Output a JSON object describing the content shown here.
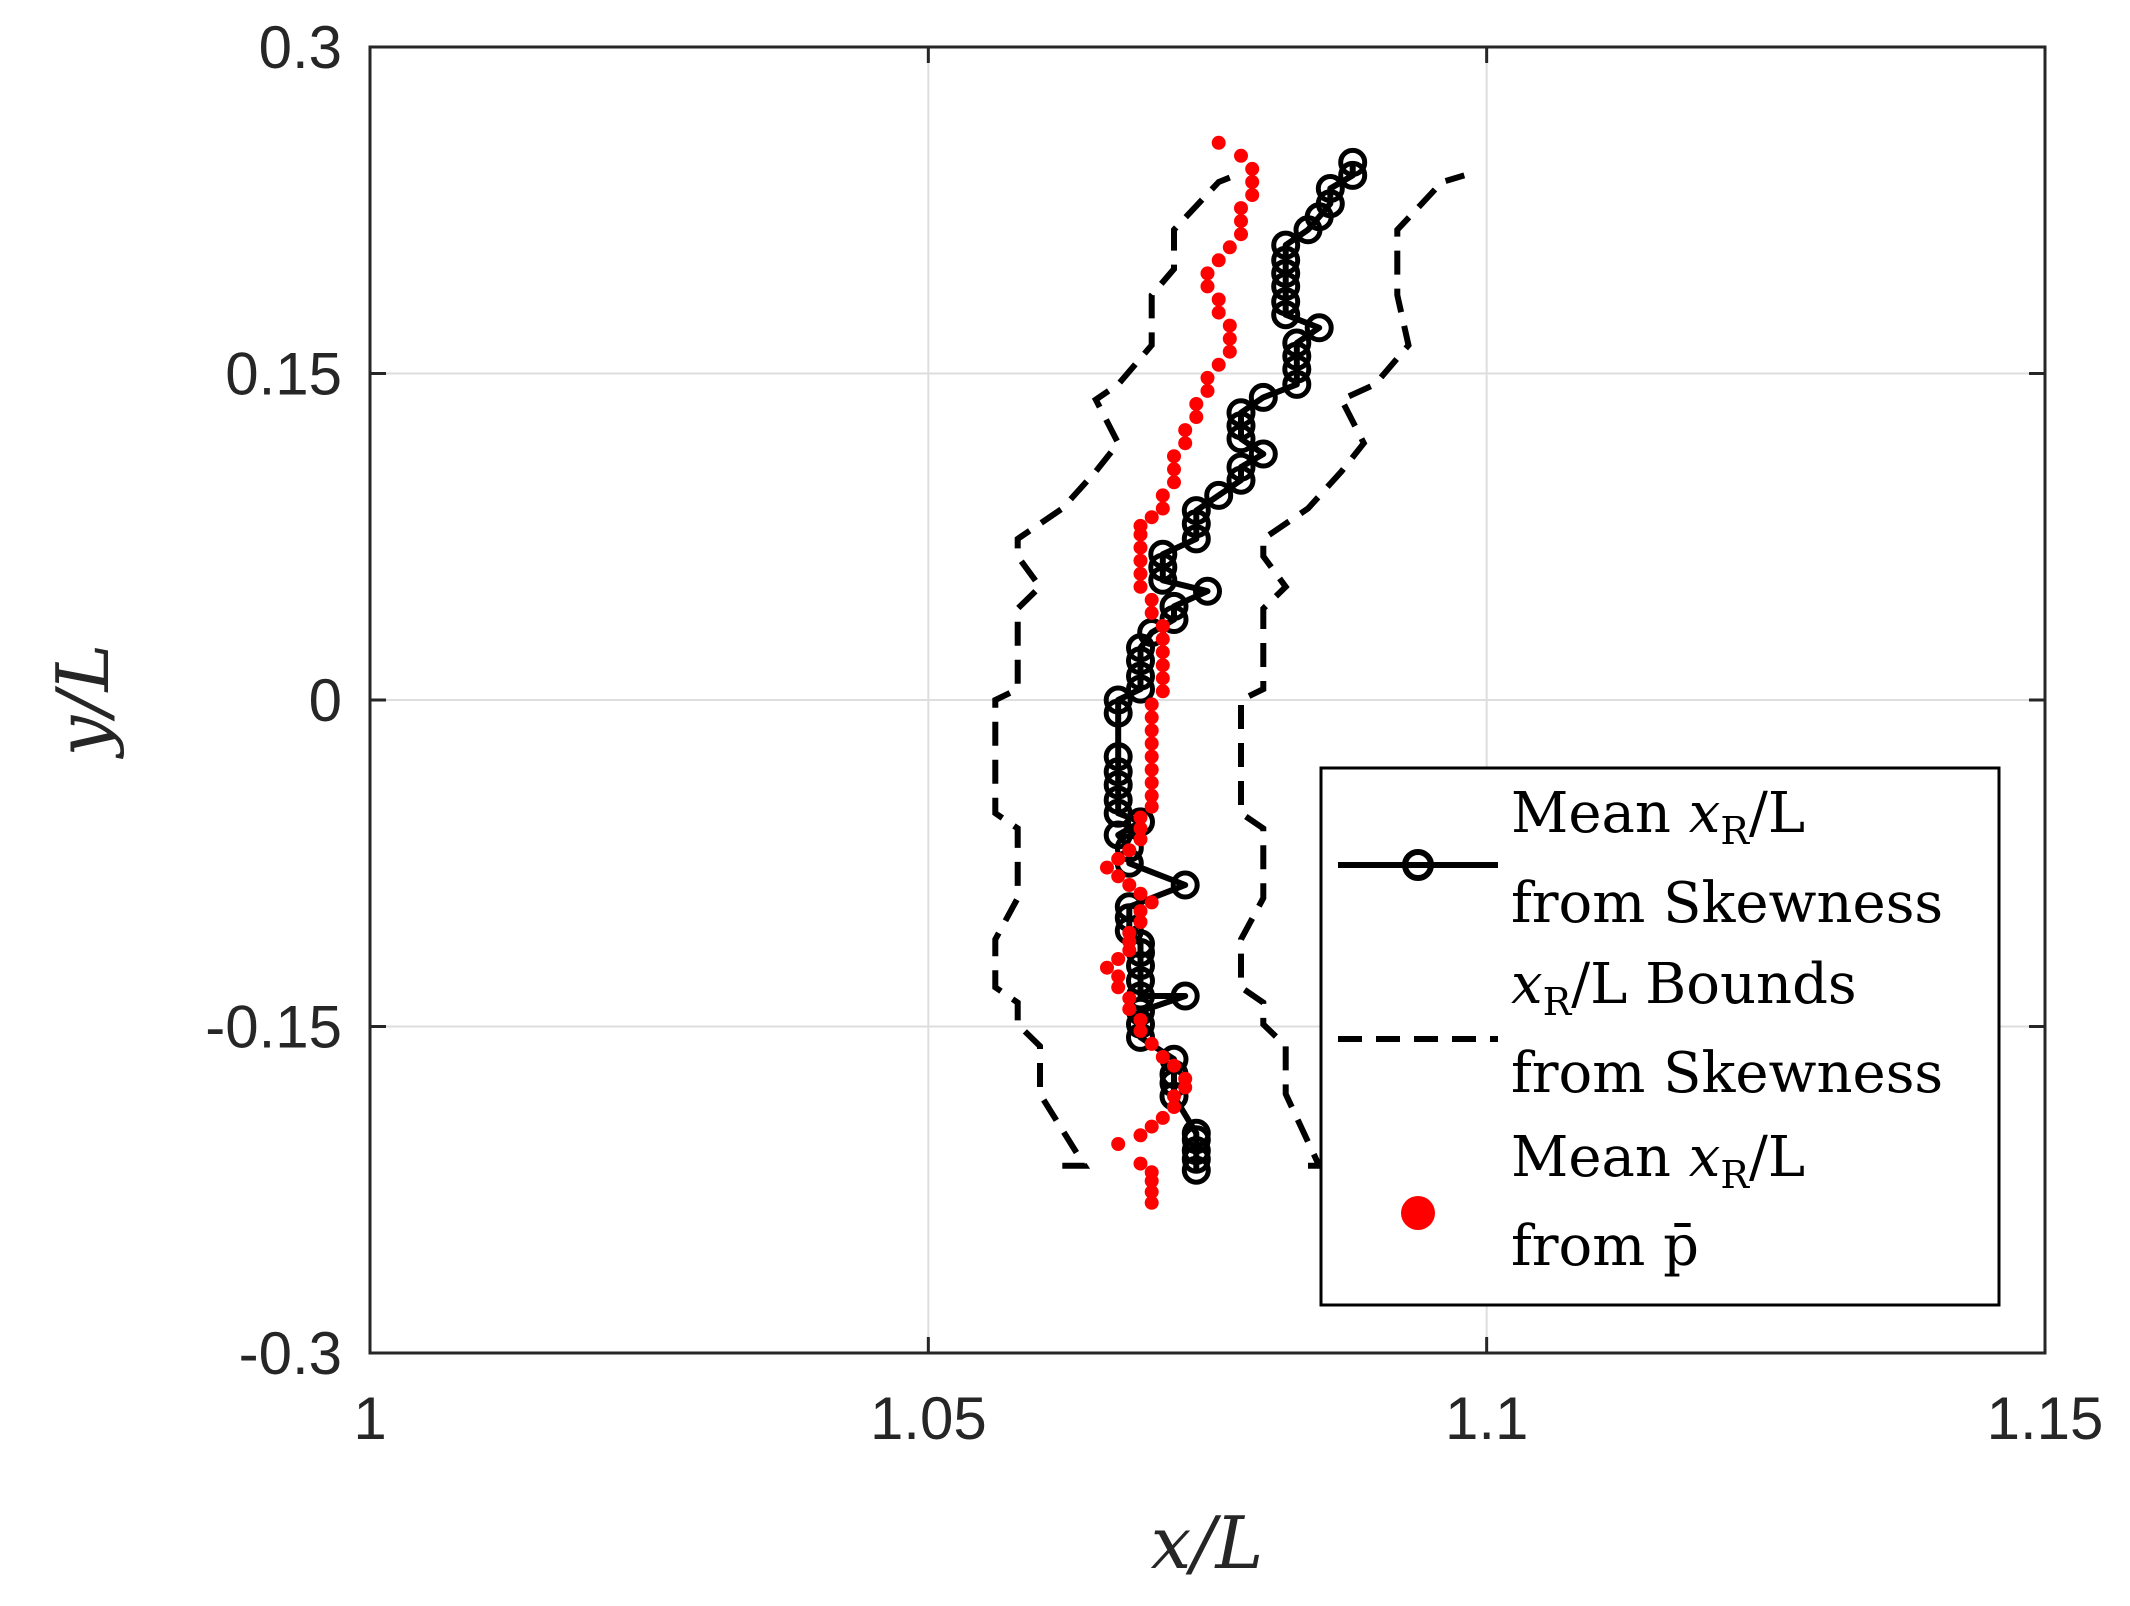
{
  "chart_data": {
    "type": "scatter",
    "title": "",
    "xlabel": "x/L",
    "ylabel": "y/L",
    "xlim": [
      1,
      1.15
    ],
    "ylim": [
      -0.3,
      0.3
    ],
    "xticks": [
      "1",
      "1.05",
      "1.1",
      "1.15"
    ],
    "xtick_values": [
      1,
      1.05,
      1.1,
      1.15
    ],
    "yticks": [
      "0.3",
      "0.15",
      "0",
      "-0.15",
      "-0.3"
    ],
    "ytick_values": [
      0.3,
      0.15,
      0,
      -0.15,
      -0.3
    ],
    "grid": true,
    "legend_position": "bottom-right",
    "legend": [
      {
        "line1_pre": "Mean ",
        "line1_math": "x",
        "line1_sub": "R",
        "line1_post": "/L",
        "line2": "from Skewness"
      },
      {
        "line1_pre": "",
        "line1_math": "x",
        "line1_sub": "R",
        "line1_post": "/L Bounds",
        "line2": "from Skewness"
      },
      {
        "line1_pre": "Mean ",
        "line1_math": "x",
        "line1_sub": "R",
        "line1_post": "/L",
        "line2": "from p̄"
      }
    ],
    "series": [
      {
        "name": "Mean xR/L from Skewness",
        "style": "black solid line with open circles",
        "color": "#000000",
        "points": [
          [
            1.074,
            -0.216
          ],
          [
            1.074,
            -0.211
          ],
          [
            1.074,
            -0.207
          ],
          [
            1.074,
            -0.202
          ],
          [
            1.074,
            -0.199
          ],
          [
            1.072,
            -0.182
          ],
          [
            1.072,
            -0.176
          ],
          [
            1.072,
            -0.172
          ],
          [
            1.072,
            -0.165
          ],
          [
            1.069,
            -0.155
          ],
          [
            1.069,
            -0.149
          ],
          [
            1.069,
            -0.143
          ],
          [
            1.073,
            -0.136
          ],
          [
            1.069,
            -0.136
          ],
          [
            1.069,
            -0.129
          ],
          [
            1.069,
            -0.122
          ],
          [
            1.069,
            -0.116
          ],
          [
            1.069,
            -0.112
          ],
          [
            1.068,
            -0.106
          ],
          [
            1.068,
            -0.1
          ],
          [
            1.068,
            -0.095
          ],
          [
            1.073,
            -0.085
          ],
          [
            1.068,
            -0.075
          ],
          [
            1.068,
            -0.068
          ],
          [
            1.067,
            -0.062
          ],
          [
            1.069,
            -0.056
          ],
          [
            1.067,
            -0.052
          ],
          [
            1.067,
            -0.046
          ],
          [
            1.067,
            -0.039
          ],
          [
            1.067,
            -0.033
          ],
          [
            1.067,
            -0.026
          ],
          [
            1.067,
            -0.006
          ],
          [
            1.067,
            0.0
          ],
          [
            1.069,
            0.005
          ],
          [
            1.069,
            0.011
          ],
          [
            1.069,
            0.018
          ],
          [
            1.069,
            0.024
          ],
          [
            1.07,
            0.031
          ],
          [
            1.072,
            0.037
          ],
          [
            1.072,
            0.043
          ],
          [
            1.075,
            0.05
          ],
          [
            1.071,
            0.055
          ],
          [
            1.071,
            0.061
          ],
          [
            1.071,
            0.067
          ],
          [
            1.074,
            0.074
          ],
          [
            1.074,
            0.081
          ],
          [
            1.074,
            0.087
          ],
          [
            1.076,
            0.094
          ],
          [
            1.078,
            0.101
          ],
          [
            1.078,
            0.107
          ],
          [
            1.08,
            0.113
          ],
          [
            1.078,
            0.12
          ],
          [
            1.078,
            0.126
          ],
          [
            1.078,
            0.132
          ],
          [
            1.08,
            0.139
          ],
          [
            1.083,
            0.145
          ],
          [
            1.083,
            0.152
          ],
          [
            1.083,
            0.158
          ],
          [
            1.083,
            0.164
          ],
          [
            1.085,
            0.171
          ],
          [
            1.082,
            0.177
          ],
          [
            1.082,
            0.183
          ],
          [
            1.082,
            0.19
          ],
          [
            1.082,
            0.196
          ],
          [
            1.082,
            0.202
          ],
          [
            1.082,
            0.209
          ],
          [
            1.084,
            0.216
          ],
          [
            1.085,
            0.222
          ],
          [
            1.086,
            0.228
          ],
          [
            1.086,
            0.235
          ],
          [
            1.088,
            0.241
          ],
          [
            1.088,
            0.247
          ]
        ]
      },
      {
        "name": "xR/L Bounds from Skewness (lower)",
        "style": "black dashed line",
        "color": "#000000",
        "points": [
          [
            1.062,
            -0.214
          ],
          [
            1.064,
            -0.214
          ],
          [
            1.06,
            -0.181
          ],
          [
            1.06,
            -0.159
          ],
          [
            1.058,
            -0.149
          ],
          [
            1.058,
            -0.139
          ],
          [
            1.056,
            -0.132
          ],
          [
            1.056,
            -0.11
          ],
          [
            1.058,
            -0.091
          ],
          [
            1.058,
            -0.059
          ],
          [
            1.056,
            -0.052
          ],
          [
            1.056,
            0.0
          ],
          [
            1.058,
            0.005
          ],
          [
            1.058,
            0.042
          ],
          [
            1.06,
            0.052
          ],
          [
            1.058,
            0.066
          ],
          [
            1.058,
            0.074
          ],
          [
            1.062,
            0.088
          ],
          [
            1.065,
            0.105
          ],
          [
            1.067,
            0.118
          ],
          [
            1.065,
            0.138
          ],
          [
            1.067,
            0.145
          ],
          [
            1.07,
            0.163
          ],
          [
            1.07,
            0.186
          ],
          [
            1.072,
            0.198
          ],
          [
            1.072,
            0.216
          ],
          [
            1.074,
            0.227
          ],
          [
            1.076,
            0.238
          ],
          [
            1.077,
            0.24
          ]
        ]
      },
      {
        "name": "xR/L Bounds from Skewness (upper)",
        "style": "black dashed line",
        "color": "#000000",
        "points": [
          [
            1.084,
            -0.214
          ],
          [
            1.085,
            -0.214
          ],
          [
            1.082,
            -0.181
          ],
          [
            1.082,
            -0.159
          ],
          [
            1.08,
            -0.149
          ],
          [
            1.08,
            -0.139
          ],
          [
            1.078,
            -0.132
          ],
          [
            1.078,
            -0.11
          ],
          [
            1.08,
            -0.091
          ],
          [
            1.08,
            -0.059
          ],
          [
            1.078,
            -0.052
          ],
          [
            1.078,
            0.0
          ],
          [
            1.08,
            0.005
          ],
          [
            1.08,
            0.042
          ],
          [
            1.082,
            0.052
          ],
          [
            1.08,
            0.066
          ],
          [
            1.08,
            0.074
          ],
          [
            1.084,
            0.088
          ],
          [
            1.087,
            0.105
          ],
          [
            1.089,
            0.118
          ],
          [
            1.087,
            0.138
          ],
          [
            1.09,
            0.145
          ],
          [
            1.093,
            0.163
          ],
          [
            1.092,
            0.186
          ],
          [
            1.092,
            0.198
          ],
          [
            1.092,
            0.216
          ],
          [
            1.094,
            0.227
          ],
          [
            1.096,
            0.238
          ],
          [
            1.098,
            0.241
          ]
        ]
      },
      {
        "name": "Mean xR/L from p̄",
        "style": "red filled dots",
        "color": "#ff0000",
        "points": [
          [
            1.07,
            -0.231
          ],
          [
            1.07,
            -0.226
          ],
          [
            1.07,
            -0.221
          ],
          [
            1.07,
            -0.217
          ],
          [
            1.069,
            -0.213
          ],
          [
            1.067,
            -0.204
          ],
          [
            1.069,
            -0.2
          ],
          [
            1.07,
            -0.196
          ],
          [
            1.071,
            -0.192
          ],
          [
            1.072,
            -0.187
          ],
          [
            1.072,
            -0.182
          ],
          [
            1.073,
            -0.178
          ],
          [
            1.073,
            -0.174
          ],
          [
            1.072,
            -0.168
          ],
          [
            1.071,
            -0.164
          ],
          [
            1.07,
            -0.158
          ],
          [
            1.069,
            -0.152
          ],
          [
            1.069,
            -0.147
          ],
          [
            1.068,
            -0.142
          ],
          [
            1.068,
            -0.137
          ],
          [
            1.067,
            -0.132
          ],
          [
            1.067,
            -0.127
          ],
          [
            1.066,
            -0.123
          ],
          [
            1.067,
            -0.119
          ],
          [
            1.068,
            -0.115
          ],
          [
            1.068,
            -0.111
          ],
          [
            1.068,
            -0.107
          ],
          [
            1.069,
            -0.102
          ],
          [
            1.069,
            -0.097
          ],
          [
            1.07,
            -0.093
          ],
          [
            1.069,
            -0.089
          ],
          [
            1.068,
            -0.085
          ],
          [
            1.067,
            -0.081
          ],
          [
            1.066,
            -0.077
          ],
          [
            1.067,
            -0.073
          ],
          [
            1.068,
            -0.069
          ],
          [
            1.069,
            -0.064
          ],
          [
            1.069,
            -0.059
          ],
          [
            1.069,
            -0.054
          ],
          [
            1.07,
            -0.049
          ],
          [
            1.07,
            -0.044
          ],
          [
            1.07,
            -0.038
          ],
          [
            1.07,
            -0.032
          ],
          [
            1.07,
            -0.026
          ],
          [
            1.07,
            -0.02
          ],
          [
            1.07,
            -0.014
          ],
          [
            1.07,
            -0.008
          ],
          [
            1.07,
            -0.002
          ],
          [
            1.071,
            0.004
          ],
          [
            1.071,
            0.01
          ],
          [
            1.071,
            0.016
          ],
          [
            1.071,
            0.022
          ],
          [
            1.071,
            0.028
          ],
          [
            1.071,
            0.034
          ],
          [
            1.07,
            0.04
          ],
          [
            1.07,
            0.046
          ],
          [
            1.069,
            0.052
          ],
          [
            1.069,
            0.058
          ],
          [
            1.069,
            0.064
          ],
          [
            1.069,
            0.07
          ],
          [
            1.069,
            0.076
          ],
          [
            1.069,
            0.08
          ],
          [
            1.07,
            0.084
          ],
          [
            1.071,
            0.088
          ],
          [
            1.071,
            0.094
          ],
          [
            1.072,
            0.1
          ],
          [
            1.072,
            0.106
          ],
          [
            1.072,
            0.112
          ],
          [
            1.073,
            0.118
          ],
          [
            1.073,
            0.124
          ],
          [
            1.074,
            0.13
          ],
          [
            1.074,
            0.136
          ],
          [
            1.075,
            0.142
          ],
          [
            1.075,
            0.148
          ],
          [
            1.076,
            0.154
          ],
          [
            1.077,
            0.16
          ],
          [
            1.077,
            0.166
          ],
          [
            1.077,
            0.172
          ],
          [
            1.076,
            0.178
          ],
          [
            1.076,
            0.184
          ],
          [
            1.075,
            0.19
          ],
          [
            1.075,
            0.196
          ],
          [
            1.076,
            0.202
          ],
          [
            1.077,
            0.208
          ],
          [
            1.078,
            0.214
          ],
          [
            1.078,
            0.22
          ],
          [
            1.078,
            0.226
          ],
          [
            1.079,
            0.232
          ],
          [
            1.079,
            0.238
          ],
          [
            1.079,
            0.244
          ],
          [
            1.078,
            0.25
          ],
          [
            1.076,
            0.256
          ]
        ]
      }
    ]
  }
}
